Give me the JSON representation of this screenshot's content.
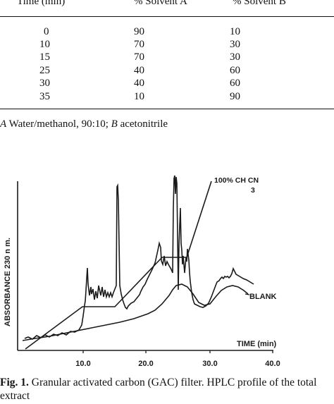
{
  "table": {
    "headers": [
      "Time (min)",
      "% Solvent A",
      "% Solvent B"
    ],
    "rows": [
      [
        "0",
        "90",
        "10"
      ],
      [
        "10",
        "70",
        "30"
      ],
      [
        "15",
        "70",
        "30"
      ],
      [
        "25",
        "40",
        "60"
      ],
      [
        "30",
        "40",
        "60"
      ],
      [
        "35",
        "10",
        "90"
      ]
    ],
    "footnote_a_letter": "A",
    "footnote_a_text": " Water/methanol, 90:10; ",
    "footnote_b_letter": "B",
    "footnote_b_text": " acetonitrile"
  },
  "figure": {
    "ylabel": "ABSORBANCE   230 n m.",
    "xlabel": "TIME (min)",
    "xticks": [
      "10.0",
      "20.0",
      "30.0",
      "40.0"
    ],
    "annotation_gradient": "100% CH CN",
    "annotation_sub": "3",
    "annotation_blank": "BLANK",
    "colors": {
      "ink": "#1a1a1a"
    }
  },
  "caption": {
    "label": "Fig. 1.",
    "text": " Granular activated carbon (GAC) filter. HPLC profile of the total extract"
  },
  "chart_data": {
    "type": "line",
    "xlabel": "TIME (min)",
    "ylabel": "ABSORBANCE 230 n m.",
    "xlim": [
      0,
      40
    ],
    "series": [
      {
        "name": "",
        "x": [
          0,
          5,
          10,
          10.3,
          10.6,
          11,
          12.5,
          15,
          15.6,
          16,
          17,
          18,
          21,
          23,
          24,
          24.4,
          25,
          25.5,
          26.5,
          27,
          28,
          30,
          32,
          33,
          35,
          37
        ],
        "y": [
          0.01,
          0.03,
          0.07,
          0.26,
          0.22,
          0.17,
          0.18,
          0.19,
          0.68,
          0.18,
          0.14,
          0.16,
          0.25,
          0.35,
          0.56,
          0.72,
          0.62,
          0.32,
          0.18,
          0.14,
          0.13,
          0.15,
          0.23,
          0.26,
          0.24,
          0.22
        ]
      },
      {
        "name": "BLANK",
        "x": [
          0,
          5,
          10,
          15,
          20,
          23,
          24,
          25,
          26,
          28,
          30,
          32,
          34,
          36
        ],
        "y": [
          0.0,
          0.02,
          0.04,
          0.06,
          0.09,
          0.12,
          0.16,
          0.2,
          0.19,
          0.14,
          0.13,
          0.16,
          0.19,
          0.18
        ]
      },
      {
        "name": "100% CH3CN gradient",
        "x": [
          0,
          10,
          15,
          25,
          30,
          35
        ],
        "y": [
          10,
          30,
          30,
          60,
          60,
          90
        ]
      }
    ]
  }
}
